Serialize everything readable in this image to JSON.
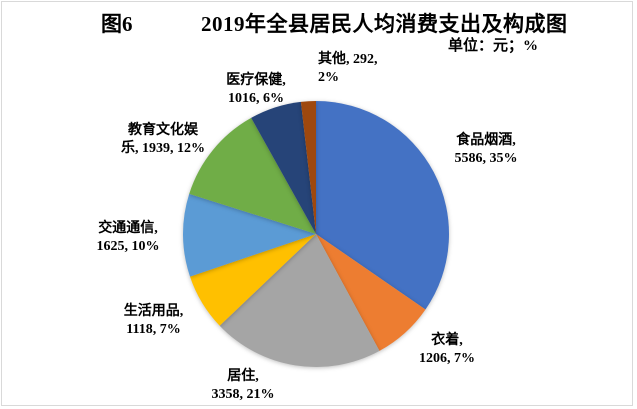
{
  "chart_data": {
    "type": "pie",
    "figure_label": "图6",
    "title": "2019年全县居民人均消费支出及构成图",
    "unit_note": "单位：元；%",
    "categories": [
      "食品烟酒",
      "衣着",
      "居住",
      "生活用品",
      "交通通信",
      "教育文化娱乐",
      "医疗保健",
      "其他"
    ],
    "values": [
      5586,
      1206,
      3358,
      1118,
      1625,
      1939,
      1016,
      292
    ],
    "percents": [
      35,
      7,
      21,
      7,
      10,
      12,
      6,
      2
    ],
    "colors": [
      "#4472C4",
      "#ED7D31",
      "#A5A5A5",
      "#FFC000",
      "#5B9BD5",
      "#70AD47",
      "#264478",
      "#9E480E"
    ],
    "label_lines": [
      [
        "食品烟酒,",
        "5586, 35%"
      ],
      [
        "衣着,",
        "1206, 7%"
      ],
      [
        "居住,",
        "3358, 21%"
      ],
      [
        "生活用品,",
        "1118, 7%"
      ],
      [
        "交通通信,",
        "1625, 10%"
      ],
      [
        "教育文化娱",
        "乐, 1939, 12%"
      ],
      [
        "医疗保健,",
        "1016, 6%"
      ],
      [
        "其他, 292,",
        "2%"
      ]
    ],
    "start_angle_deg": 0,
    "direction": "clockwise",
    "legend": "none",
    "background": "#ffffff"
  }
}
